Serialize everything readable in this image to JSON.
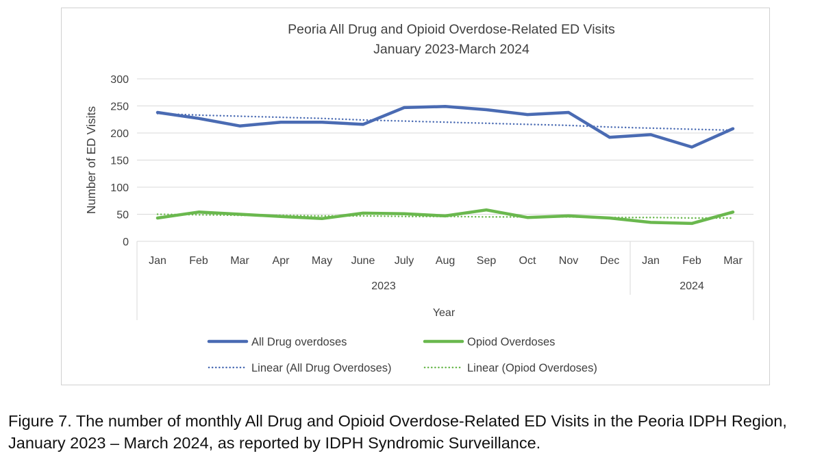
{
  "chart_data": {
    "type": "line",
    "title": "Peoria All Drug and Opioid Overdose-Related ED Visits",
    "subtitle": "January 2023-March 2024",
    "xlabel": "Year",
    "ylabel": "Number of ED Visits",
    "ylim": [
      0,
      300
    ],
    "yticks": [
      0,
      50,
      100,
      150,
      200,
      250,
      300
    ],
    "categories": [
      "Jan",
      "Feb",
      "Mar",
      "Apr",
      "May",
      "June",
      "July",
      "Aug",
      "Sep",
      "Oct",
      "Nov",
      "Dec",
      "Jan",
      "Feb",
      "Mar"
    ],
    "year_groups": [
      {
        "label": "2023",
        "start": 0,
        "end": 11
      },
      {
        "label": "2024",
        "start": 12,
        "end": 14
      }
    ],
    "grid": true,
    "legend_position": "bottom",
    "series": [
      {
        "name": "All Drug overdoses",
        "color": "#4a6bb3",
        "style": "solid",
        "values": [
          238,
          227,
          213,
          220,
          220,
          216,
          247,
          249,
          243,
          234,
          238,
          192,
          197,
          174,
          208
        ]
      },
      {
        "name": "Opiod Overdoses",
        "color": "#6ab84e",
        "style": "solid",
        "values": [
          43,
          54,
          50,
          46,
          42,
          52,
          51,
          47,
          58,
          44,
          47,
          43,
          35,
          33,
          54
        ]
      },
      {
        "name": "Linear (All Drug Overdoses)",
        "color": "#4a6bb3",
        "style": "dotted",
        "values": [
          236,
          233,
          231,
          229,
          227,
          224,
          222,
          220,
          218,
          216,
          214,
          211,
          209,
          207,
          205
        ]
      },
      {
        "name": "Linear (Opiod Overdoses)",
        "color": "#6ab84e",
        "style": "dotted",
        "values": [
          50,
          49,
          48,
          48,
          47,
          47,
          46,
          46,
          45,
          45,
          45,
          44,
          44,
          43,
          43
        ]
      }
    ]
  },
  "caption": "Figure 7. The number of monthly All Drug and Opioid Overdose-Related ED Visits in the Peoria IDPH Region, January 2023 – March 2024, as reported by IDPH Syndromic Surveillance."
}
